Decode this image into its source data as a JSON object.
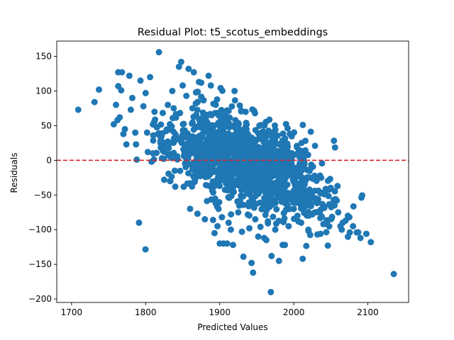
{
  "chart_data": {
    "type": "scatter",
    "title": "Residual Plot: t5_scotus_embeddings",
    "xlabel": "Predicted Values",
    "ylabel": "Residuals",
    "xlim": [
      1680,
      2155
    ],
    "ylim": [
      -205,
      172
    ],
    "xticks": [
      1700,
      1800,
      1900,
      2000,
      2100
    ],
    "yticks": [
      150,
      100,
      50,
      0,
      -50,
      -100,
      -150,
      -200
    ],
    "grid": false,
    "reference_line": {
      "y": 0,
      "style": "dashed",
      "color": "#d62728"
    },
    "marker_color": "#1f77b4",
    "cloud": {
      "note_count": 1400,
      "band_center": [
        [
          1800,
          35
        ],
        [
          1850,
          25
        ],
        [
          1900,
          10
        ],
        [
          1950,
          -5
        ],
        [
          2000,
          -20
        ],
        [
          2050,
          -45
        ],
        [
          2100,
          -85
        ]
      ],
      "band_spread": 30
    },
    "points": [
      {
        "x": 1709,
        "y": 73
      },
      {
        "x": 1731,
        "y": 84
      },
      {
        "x": 1737,
        "y": 102
      },
      {
        "x": 1757,
        "y": 52
      },
      {
        "x": 1760,
        "y": 80
      },
      {
        "x": 1763,
        "y": 127
      },
      {
        "x": 1768,
        "y": 127
      },
      {
        "x": 1763,
        "y": 107
      },
      {
        "x": 1767,
        "y": 101
      },
      {
        "x": 1765,
        "y": 62
      },
      {
        "x": 1762,
        "y": 58
      },
      {
        "x": 1770,
        "y": 38
      },
      {
        "x": 1774,
        "y": 23
      },
      {
        "x": 1772,
        "y": 45
      },
      {
        "x": 1778,
        "y": 122
      },
      {
        "x": 1780,
        "y": 73
      },
      {
        "x": 1782,
        "y": 90
      },
      {
        "x": 1786,
        "y": 40
      },
      {
        "x": 1787,
        "y": 23
      },
      {
        "x": 1788,
        "y": 1
      },
      {
        "x": 1793,
        "y": 115
      },
      {
        "x": 1797,
        "y": 78
      },
      {
        "x": 1800,
        "y": 97
      },
      {
        "x": 1802,
        "y": 40
      },
      {
        "x": 1803,
        "y": 12
      },
      {
        "x": 1806,
        "y": 120
      },
      {
        "x": 1808,
        "y": -2
      },
      {
        "x": 1810,
        "y": 10
      },
      {
        "x": 1812,
        "y": 70
      },
      {
        "x": 1815,
        "y": 48
      },
      {
        "x": 1818,
        "y": 156
      },
      {
        "x": 1820,
        "y": 25
      },
      {
        "x": 1825,
        "y": -28
      },
      {
        "x": 1830,
        "y": 80
      },
      {
        "x": 1833,
        "y": -30
      },
      {
        "x": 1836,
        "y": 100
      },
      {
        "x": 1840,
        "y": -38
      },
      {
        "x": 1845,
        "y": 135
      },
      {
        "x": 1848,
        "y": 142
      },
      {
        "x": 1850,
        "y": 108
      },
      {
        "x": 1855,
        "y": 93
      },
      {
        "x": 1858,
        "y": 132
      },
      {
        "x": 1860,
        "y": -70
      },
      {
        "x": 1865,
        "y": 127
      },
      {
        "x": 1868,
        "y": 98
      },
      {
        "x": 1870,
        "y": -77
      },
      {
        "x": 1872,
        "y": 113
      },
      {
        "x": 1875,
        "y": 112
      },
      {
        "x": 1880,
        "y": -85
      },
      {
        "x": 1885,
        "y": 122
      },
      {
        "x": 1888,
        "y": 108
      },
      {
        "x": 1891,
        "y": -86
      },
      {
        "x": 1893,
        "y": -105
      },
      {
        "x": 1897,
        "y": -95
      },
      {
        "x": 1900,
        "y": -120
      },
      {
        "x": 1903,
        "y": -82
      },
      {
        "x": 1905,
        "y": -120
      },
      {
        "x": 1910,
        "y": -120
      },
      {
        "x": 1912,
        "y": -90
      },
      {
        "x": 1915,
        "y": -100
      },
      {
        "x": 1918,
        "y": -122
      },
      {
        "x": 1920,
        "y": 100
      },
      {
        "x": 1925,
        "y": -75
      },
      {
        "x": 1930,
        "y": -103
      },
      {
        "x": 1932,
        "y": -139
      },
      {
        "x": 1935,
        "y": 70
      },
      {
        "x": 1940,
        "y": -98
      },
      {
        "x": 1943,
        "y": -148
      },
      {
        "x": 1945,
        "y": -162
      },
      {
        "x": 1948,
        "y": -85
      },
      {
        "x": 1952,
        "y": -110
      },
      {
        "x": 1955,
        "y": -96
      },
      {
        "x": 1960,
        "y": -112
      },
      {
        "x": 1963,
        "y": -115
      },
      {
        "x": 1965,
        "y": -88
      },
      {
        "x": 1969,
        "y": -190
      },
      {
        "x": 1970,
        "y": -138
      },
      {
        "x": 1975,
        "y": -100
      },
      {
        "x": 1980,
        "y": -145
      },
      {
        "x": 1985,
        "y": -122
      },
      {
        "x": 1988,
        "y": -122
      },
      {
        "x": 1993,
        "y": -95
      },
      {
        "x": 2000,
        "y": -70
      },
      {
        "x": 2005,
        "y": -80
      },
      {
        "x": 2010,
        "y": -90
      },
      {
        "x": 2012,
        "y": -142
      },
      {
        "x": 2015,
        "y": -67
      },
      {
        "x": 2020,
        "y": -102
      },
      {
        "x": 2025,
        "y": -78
      },
      {
        "x": 2030,
        "y": -60
      },
      {
        "x": 2035,
        "y": -75
      },
      {
        "x": 2040,
        "y": -92
      },
      {
        "x": 2043,
        "y": -45
      },
      {
        "x": 2045,
        "y": -92
      },
      {
        "x": 2046,
        "y": -123
      },
      {
        "x": 2048,
        "y": -42
      },
      {
        "x": 2050,
        "y": -85
      },
      {
        "x": 2055,
        "y": -65
      },
      {
        "x": 2058,
        "y": -58
      },
      {
        "x": 2060,
        "y": -75
      },
      {
        "x": 2063,
        "y": -95
      },
      {
        "x": 2066,
        "y": -90
      },
      {
        "x": 2070,
        "y": -87
      },
      {
        "x": 2073,
        "y": -80
      },
      {
        "x": 2075,
        "y": -82
      },
      {
        "x": 2080,
        "y": -95
      },
      {
        "x": 2085,
        "y": -104
      },
      {
        "x": 2090,
        "y": -112
      },
      {
        "x": 2098,
        "y": -106
      },
      {
        "x": 2104,
        "y": -118
      },
      {
        "x": 2135,
        "y": -164
      }
    ]
  }
}
